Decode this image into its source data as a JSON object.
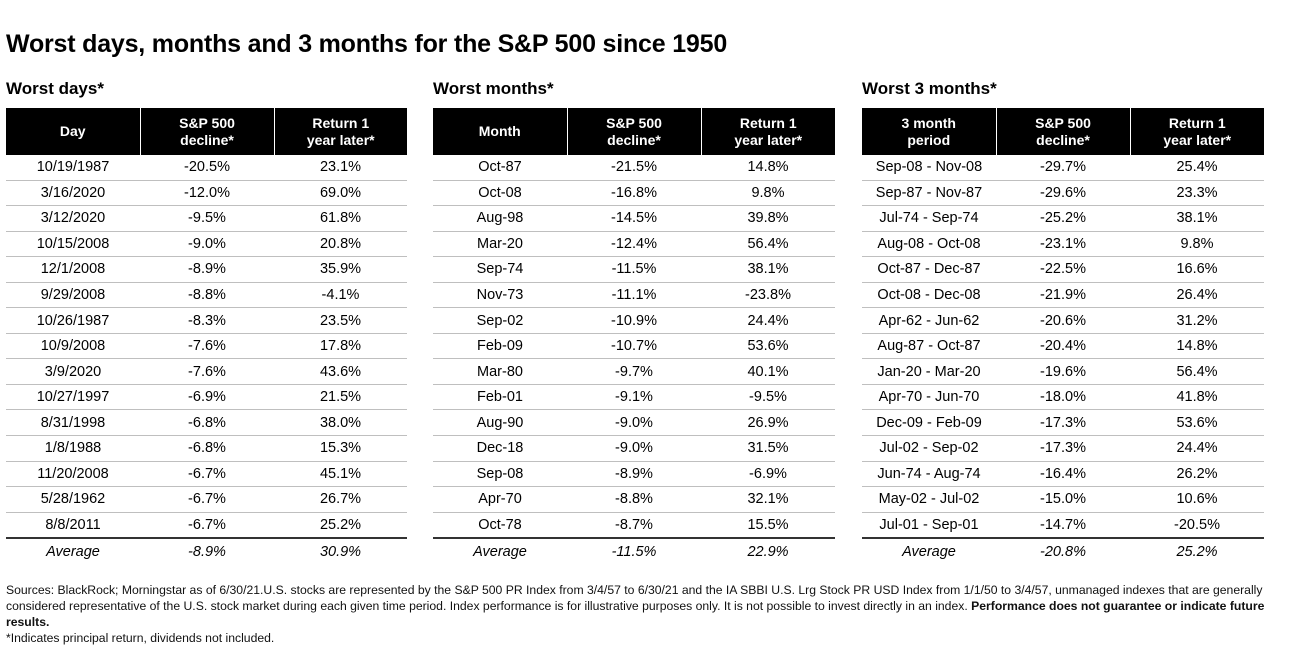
{
  "title": "Worst days, months and 3 months for the S&P 500 since 1950",
  "panels": [
    {
      "heading": "Worst days*",
      "columns": [
        "Day",
        "S&P 500 decline*",
        "Return 1 year later*"
      ],
      "rows": [
        [
          "10/19/1987",
          "-20.5%",
          "23.1%"
        ],
        [
          "3/16/2020",
          "-12.0%",
          "69.0%"
        ],
        [
          "3/12/2020",
          "-9.5%",
          "61.8%"
        ],
        [
          "10/15/2008",
          "-9.0%",
          "20.8%"
        ],
        [
          "12/1/2008",
          "-8.9%",
          "35.9%"
        ],
        [
          "9/29/2008",
          "-8.8%",
          "-4.1%"
        ],
        [
          "10/26/1987",
          "-8.3%",
          "23.5%"
        ],
        [
          "10/9/2008",
          "-7.6%",
          "17.8%"
        ],
        [
          "3/9/2020",
          "-7.6%",
          "43.6%"
        ],
        [
          "10/27/1997",
          "-6.9%",
          "21.5%"
        ],
        [
          "8/31/1998",
          "-6.8%",
          "38.0%"
        ],
        [
          "1/8/1988",
          "-6.8%",
          "15.3%"
        ],
        [
          "11/20/2008",
          "-6.7%",
          "45.1%"
        ],
        [
          "5/28/1962",
          "-6.7%",
          "26.7%"
        ],
        [
          "8/8/2011",
          "-6.7%",
          "25.2%"
        ]
      ],
      "average": [
        "Average",
        "-8.9%",
        "30.9%"
      ]
    },
    {
      "heading": "Worst months*",
      "columns": [
        "Month",
        "S&P 500 decline*",
        "Return 1 year later*"
      ],
      "rows": [
        [
          "Oct-87",
          "-21.5%",
          "14.8%"
        ],
        [
          "Oct-08",
          "-16.8%",
          "9.8%"
        ],
        [
          "Aug-98",
          "-14.5%",
          "39.8%"
        ],
        [
          "Mar-20",
          "-12.4%",
          "56.4%"
        ],
        [
          "Sep-74",
          "-11.5%",
          "38.1%"
        ],
        [
          "Nov-73",
          "-11.1%",
          "-23.8%"
        ],
        [
          "Sep-02",
          "-10.9%",
          "24.4%"
        ],
        [
          "Feb-09",
          "-10.7%",
          "53.6%"
        ],
        [
          "Mar-80",
          "-9.7%",
          "40.1%"
        ],
        [
          "Feb-01",
          "-9.1%",
          "-9.5%"
        ],
        [
          "Aug-90",
          "-9.0%",
          "26.9%"
        ],
        [
          "Dec-18",
          "-9.0%",
          "31.5%"
        ],
        [
          "Sep-08",
          "-8.9%",
          "-6.9%"
        ],
        [
          "Apr-70",
          "-8.8%",
          "32.1%"
        ],
        [
          "Oct-78",
          "-8.7%",
          "15.5%"
        ]
      ],
      "average": [
        "Average",
        "-11.5%",
        "22.9%"
      ]
    },
    {
      "heading": "Worst 3 months*",
      "columns": [
        "3 month period",
        "S&P 500 decline*",
        "Return 1 year later*"
      ],
      "rows": [
        [
          "Sep-08 - Nov-08",
          "-29.7%",
          "25.4%"
        ],
        [
          "Sep-87 - Nov-87",
          "-29.6%",
          "23.3%"
        ],
        [
          "Jul-74 - Sep-74",
          "-25.2%",
          "38.1%"
        ],
        [
          "Aug-08 - Oct-08",
          "-23.1%",
          "9.8%"
        ],
        [
          "Oct-87 - Dec-87",
          "-22.5%",
          "16.6%"
        ],
        [
          "Oct-08 - Dec-08",
          "-21.9%",
          "26.4%"
        ],
        [
          "Apr-62 - Jun-62",
          "-20.6%",
          "31.2%"
        ],
        [
          "Aug-87 - Oct-87",
          "-20.4%",
          "14.8%"
        ],
        [
          "Jan-20 - Mar-20",
          "-19.6%",
          "56.4%"
        ],
        [
          "Apr-70 - Jun-70",
          "-18.0%",
          "41.8%"
        ],
        [
          "Dec-09 - Feb-09",
          "-17.3%",
          "53.6%"
        ],
        [
          "Jul-02 - Sep-02",
          "-17.3%",
          "24.4%"
        ],
        [
          "Jun-74 - Aug-74",
          "-16.4%",
          "26.2%"
        ],
        [
          "May-02 - Jul-02",
          "-15.0%",
          "10.6%"
        ],
        [
          "Jul-01 - Sep-01",
          "-14.7%",
          "-20.5%"
        ]
      ],
      "average": [
        "Average",
        "-20.8%",
        "25.2%"
      ]
    }
  ],
  "footnote": {
    "sources": "Sources: BlackRock; Morningstar as of 6/30/21.U.S. stocks are represented by the S&P 500 PR Index from 3/4/57 to 6/30/21 and the IA SBBI U.S. Lrg Stock PR USD Index from 1/1/50 to 3/4/57, unmanaged indexes that are generally considered representative of the U.S. stock market during each given time period. Index performance is for illustrative purposes only. It is not possible to invest directly in an index.",
    "disclaimer_bold": "Performance does not guarantee or indicate future results.",
    "note": "*Indicates principal return, dividends not included."
  }
}
